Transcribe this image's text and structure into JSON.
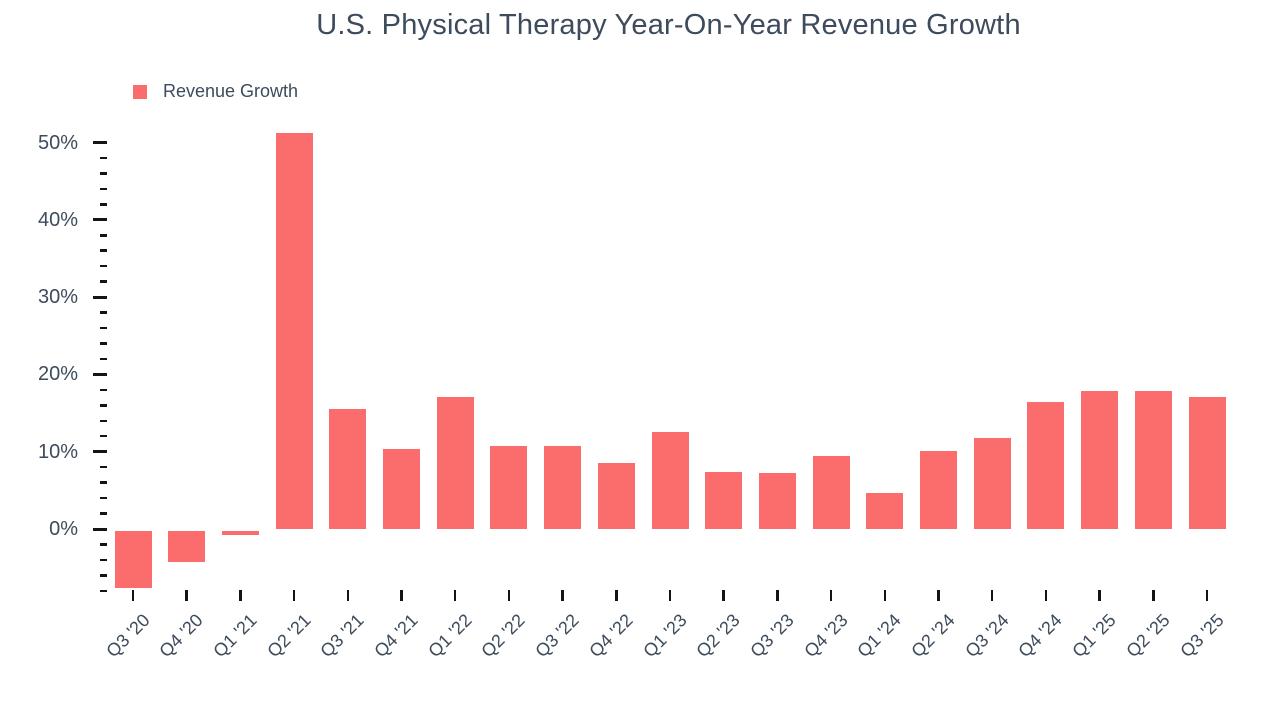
{
  "chart_data": {
    "type": "bar",
    "title": "U.S. Physical Therapy Year-On-Year Revenue Growth",
    "xlabel": "",
    "ylabel": "",
    "categories": [
      "Q3 '20",
      "Q4 '20",
      "Q1 '21",
      "Q2 '21",
      "Q3 '21",
      "Q4 '21",
      "Q1 '22",
      "Q2 '22",
      "Q3 '22",
      "Q4 '22",
      "Q1 '23",
      "Q2 '23",
      "Q3 '23",
      "Q4 '23",
      "Q1 '24",
      "Q2 '24",
      "Q3 '24",
      "Q4 '24",
      "Q1 '25",
      "Q2 '25",
      "Q3 '25"
    ],
    "series": [
      {
        "name": "Revenue Growth",
        "values": [
          -7.4,
          -4.1,
          -0.6,
          51.2,
          15.5,
          10.3,
          17.1,
          10.7,
          10.7,
          8.6,
          12.6,
          7.4,
          7.3,
          9.5,
          4.6,
          10.1,
          11.8,
          16.4,
          17.9,
          17.9,
          17.1
        ]
      }
    ],
    "unit": "%",
    "ylim": [
      -8,
      52
    ],
    "y_major_values": [
      0,
      10,
      20,
      30,
      40,
      50
    ],
    "y_tick_labels": [
      "0%",
      "10%",
      "20%",
      "30%",
      "40%",
      "50%"
    ],
    "y_minor_step": 2,
    "grid": false,
    "legend_position": "top-left",
    "bar_color": "#FB6C6C",
    "text_color": "#3D4B5C",
    "tick_color": "#141414"
  }
}
